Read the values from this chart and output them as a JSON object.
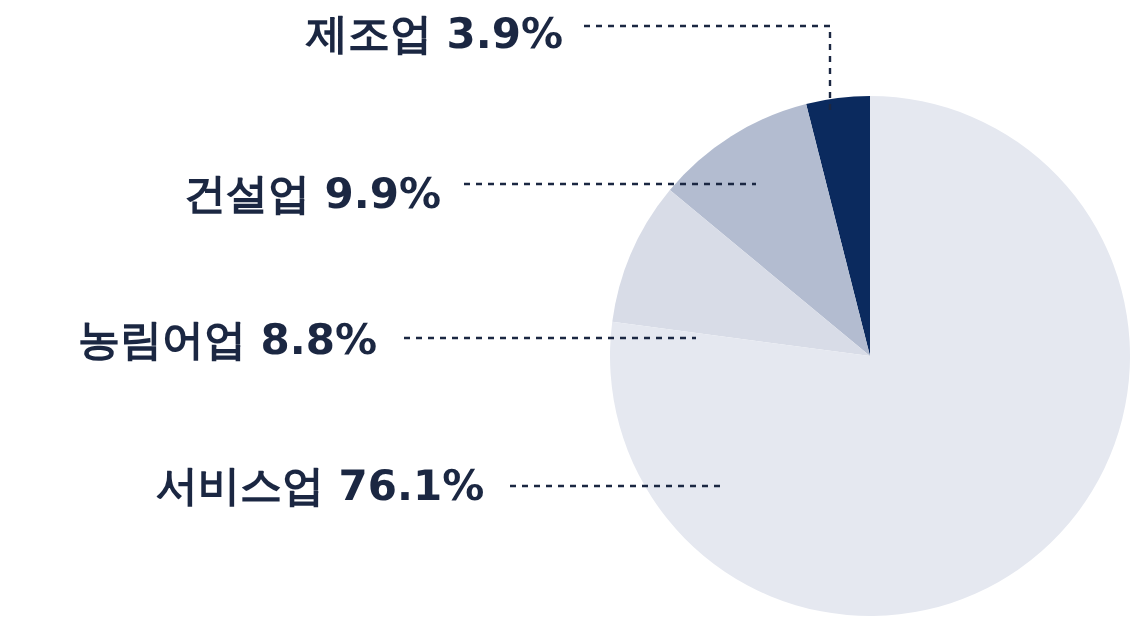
{
  "chart_data": {
    "type": "pie",
    "categories": [
      "제조업",
      "건설업",
      "농림어업",
      "서비스업"
    ],
    "values": [
      3.9,
      9.9,
      8.8,
      76.1
    ],
    "value_labels": [
      "3.9%",
      "9.9%",
      "8.8%",
      "76.1%"
    ],
    "colors": [
      "#0b2a5e",
      "#b3bcd0",
      "#d8dce7",
      "#e5e8f0"
    ],
    "legend": false
  }
}
